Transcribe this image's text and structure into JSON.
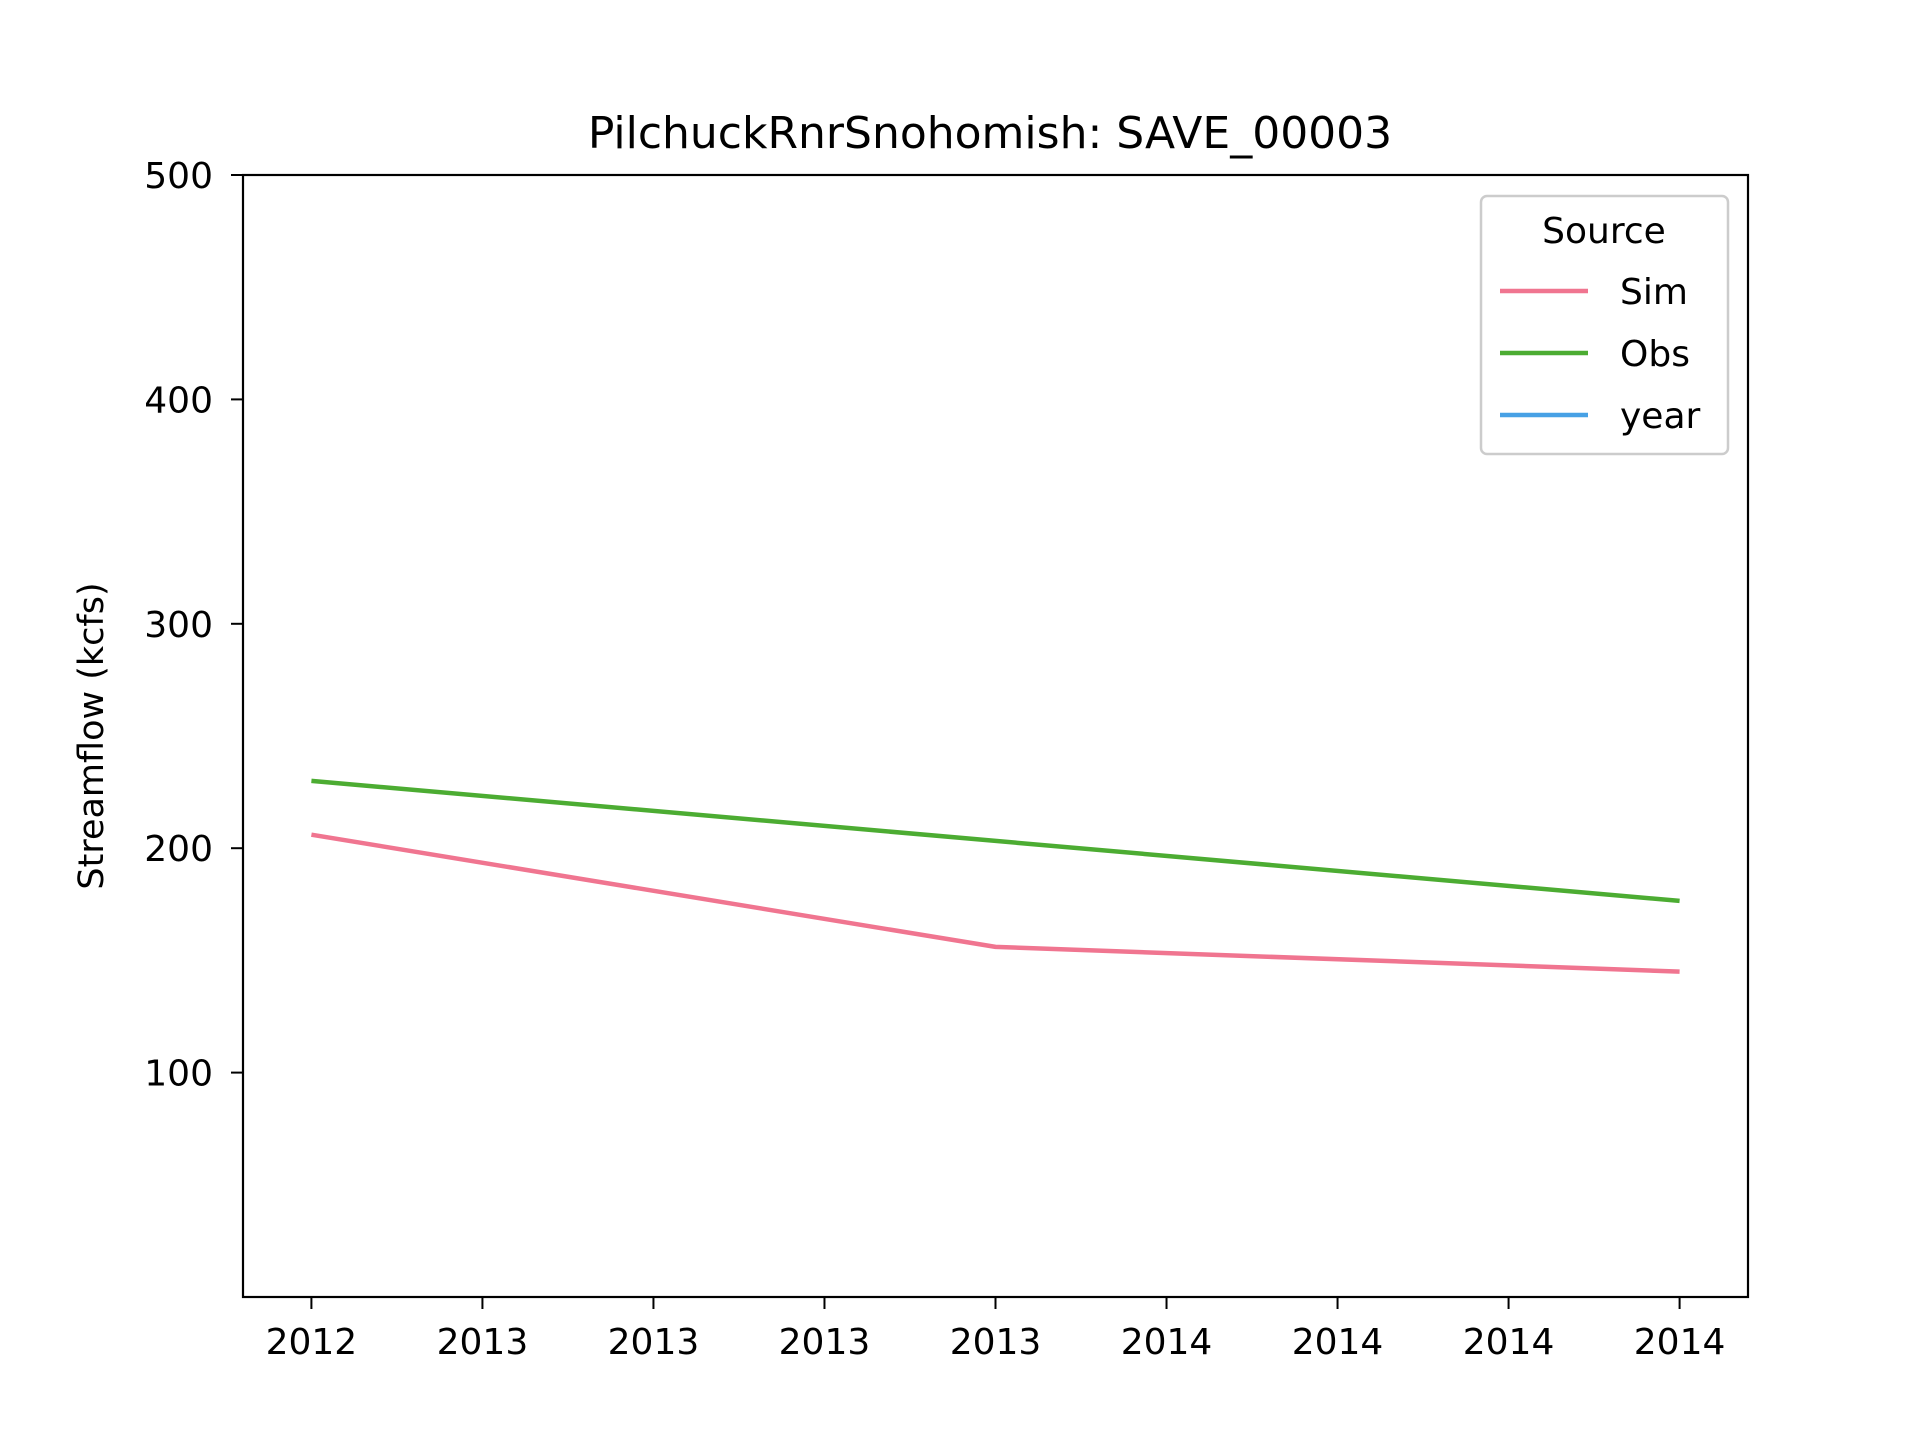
{
  "chart_data": {
    "type": "line",
    "title": "PilchuckRnrSnohomish: SAVE_00003",
    "xlabel": "",
    "ylabel": "Streamflow (kcfs)",
    "x_tick_labels": [
      "2012",
      "2013",
      "2013",
      "2013",
      "2013",
      "2014",
      "2014",
      "2014",
      "2014"
    ],
    "x_domain": [
      -0.4,
      8.4
    ],
    "ylim": [
      0,
      500
    ],
    "y_ticks": [
      100,
      200,
      300,
      400,
      500
    ],
    "grid": false,
    "legend": {
      "title": "Source",
      "placement": "top-right",
      "entries": [
        "Sim",
        "Obs",
        "year"
      ]
    },
    "series": [
      {
        "name": "Sim",
        "color": "#f07590",
        "points": [
          [
            0,
            206
          ],
          [
            4,
            156
          ],
          [
            8,
            145
          ]
        ]
      },
      {
        "name": "Obs",
        "color": "#4cac32",
        "points": [
          [
            0,
            230
          ],
          [
            8,
            176.5
          ]
        ]
      },
      {
        "name": "year",
        "color": "#47a1e5",
        "points": []
      }
    ]
  }
}
